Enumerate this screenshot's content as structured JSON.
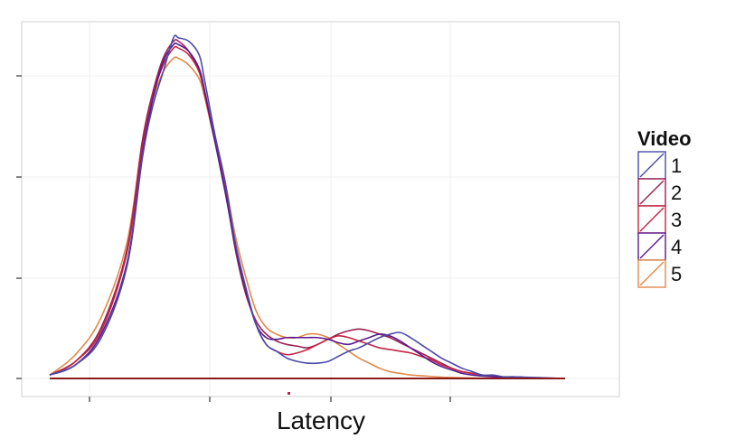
{
  "chart_data": {
    "type": "line",
    "title": "",
    "xlabel": "Latency",
    "ylabel": "",
    "grid": true,
    "legend_title": "Video",
    "legend_position": "right",
    "series": [
      {
        "name": "1",
        "color": "#4a4aa8",
        "x": [
          0.0,
          0.05,
          0.1,
          0.15,
          0.18,
          0.2,
          0.22,
          0.24,
          0.25,
          0.27,
          0.29,
          0.3,
          0.32,
          0.34,
          0.36,
          0.38,
          0.4,
          0.42,
          0.44,
          0.46,
          0.48,
          0.5,
          0.52,
          0.54,
          0.56,
          0.58,
          0.6,
          0.62,
          0.64,
          0.66,
          0.68,
          0.7,
          0.72,
          0.74,
          0.76,
          0.78,
          0.8,
          0.82,
          0.84,
          0.86,
          0.88,
          0.9,
          0.92,
          0.94,
          0.96,
          0.98,
          1.0
        ],
        "y": [
          0.01,
          0.04,
          0.12,
          0.33,
          0.65,
          0.8,
          0.9,
          1.0,
          1.0,
          0.99,
          0.95,
          0.88,
          0.72,
          0.58,
          0.4,
          0.27,
          0.16,
          0.1,
          0.08,
          0.06,
          0.05,
          0.045,
          0.045,
          0.05,
          0.065,
          0.08,
          0.09,
          0.105,
          0.12,
          0.13,
          0.135,
          0.12,
          0.1,
          0.08,
          0.06,
          0.045,
          0.03,
          0.02,
          0.01,
          0.01,
          0.005,
          0.005,
          0.004,
          0.003,
          0.002,
          0.001,
          0.0
        ]
      },
      {
        "name": "2",
        "color": "#9a1f52",
        "x": [
          0.0,
          0.05,
          0.1,
          0.15,
          0.18,
          0.2,
          0.22,
          0.24,
          0.25,
          0.27,
          0.29,
          0.3,
          0.32,
          0.34,
          0.36,
          0.38,
          0.4,
          0.42,
          0.44,
          0.46,
          0.48,
          0.5,
          0.52,
          0.54,
          0.56,
          0.58,
          0.6,
          0.62,
          0.64,
          0.66,
          0.68,
          0.7,
          0.72,
          0.74,
          0.76,
          0.78,
          0.8,
          0.82,
          0.84,
          0.86,
          0.88,
          0.9,
          0.92,
          0.94,
          0.96,
          0.98,
          1.0
        ],
        "y": [
          0.01,
          0.05,
          0.15,
          0.38,
          0.7,
          0.84,
          0.94,
          0.99,
          0.99,
          0.96,
          0.9,
          0.84,
          0.7,
          0.56,
          0.38,
          0.25,
          0.17,
          0.13,
          0.11,
          0.1,
          0.095,
          0.09,
          0.1,
          0.115,
          0.13,
          0.14,
          0.145,
          0.14,
          0.13,
          0.12,
          0.105,
          0.09,
          0.075,
          0.06,
          0.045,
          0.03,
          0.02,
          0.015,
          0.01,
          0.006,
          0.004,
          0.003,
          0.002,
          0.0015,
          0.001,
          0.0005,
          0.0
        ]
      },
      {
        "name": "3",
        "color": "#c02644",
        "x": [
          0.0,
          0.05,
          0.1,
          0.15,
          0.18,
          0.2,
          0.22,
          0.24,
          0.25,
          0.27,
          0.29,
          0.3,
          0.32,
          0.34,
          0.36,
          0.38,
          0.4,
          0.42,
          0.44,
          0.46,
          0.48,
          0.5,
          0.52,
          0.54,
          0.56,
          0.58,
          0.6,
          0.62,
          0.64,
          0.66,
          0.68,
          0.7,
          0.72,
          0.74,
          0.76,
          0.78,
          0.8,
          0.82,
          0.84,
          0.86,
          0.88,
          0.9,
          0.92,
          0.94,
          0.96,
          0.98,
          1.0
        ],
        "y": [
          0.01,
          0.05,
          0.14,
          0.37,
          0.68,
          0.83,
          0.92,
          0.97,
          0.97,
          0.95,
          0.9,
          0.84,
          0.7,
          0.57,
          0.39,
          0.26,
          0.16,
          0.1,
          0.08,
          0.07,
          0.075,
          0.085,
          0.1,
          0.115,
          0.125,
          0.12,
          0.11,
          0.1,
          0.09,
          0.085,
          0.08,
          0.075,
          0.065,
          0.055,
          0.04,
          0.03,
          0.02,
          0.015,
          0.01,
          0.006,
          0.004,
          0.003,
          0.002,
          0.0015,
          0.001,
          0.0005,
          0.0
        ]
      },
      {
        "name": "4",
        "color": "#5a1a8c",
        "x": [
          0.0,
          0.05,
          0.1,
          0.15,
          0.18,
          0.2,
          0.22,
          0.24,
          0.25,
          0.27,
          0.29,
          0.3,
          0.32,
          0.34,
          0.36,
          0.38,
          0.4,
          0.42,
          0.44,
          0.46,
          0.48,
          0.5,
          0.52,
          0.54,
          0.56,
          0.58,
          0.6,
          0.62,
          0.64,
          0.66,
          0.68,
          0.7,
          0.72,
          0.74,
          0.76,
          0.78,
          0.8,
          0.82,
          0.84,
          0.86,
          0.88,
          0.9,
          0.92,
          0.94,
          0.96,
          0.98,
          1.0
        ],
        "y": [
          0.01,
          0.04,
          0.13,
          0.34,
          0.66,
          0.82,
          0.93,
          0.98,
          0.98,
          0.96,
          0.91,
          0.85,
          0.7,
          0.55,
          0.39,
          0.26,
          0.16,
          0.12,
          0.115,
          0.12,
          0.12,
          0.12,
          0.12,
          0.115,
          0.105,
          0.1,
          0.11,
          0.12,
          0.13,
          0.125,
          0.11,
          0.09,
          0.07,
          0.05,
          0.035,
          0.025,
          0.015,
          0.01,
          0.007,
          0.005,
          0.003,
          0.002,
          0.0015,
          0.001,
          0.0007,
          0.0004,
          0.0
        ]
      },
      {
        "name": "5",
        "color": "#e08a4a",
        "x": [
          0.0,
          0.05,
          0.1,
          0.15,
          0.18,
          0.2,
          0.22,
          0.24,
          0.25,
          0.27,
          0.29,
          0.3,
          0.32,
          0.34,
          0.36,
          0.38,
          0.4,
          0.42,
          0.44,
          0.46,
          0.48,
          0.5,
          0.52,
          0.54,
          0.56,
          0.58,
          0.6,
          0.62,
          0.64,
          0.66,
          0.68,
          0.7,
          0.72,
          0.74,
          0.76,
          0.78,
          0.8,
          0.82,
          0.84,
          0.86,
          0.88,
          0.9,
          0.92,
          0.94,
          0.96,
          0.98,
          1.0
        ],
        "y": [
          0.01,
          0.07,
          0.18,
          0.4,
          0.7,
          0.82,
          0.9,
          0.94,
          0.94,
          0.92,
          0.88,
          0.83,
          0.7,
          0.58,
          0.42,
          0.3,
          0.2,
          0.15,
          0.13,
          0.12,
          0.12,
          0.13,
          0.13,
          0.12,
          0.1,
          0.08,
          0.06,
          0.045,
          0.03,
          0.02,
          0.015,
          0.01,
          0.008,
          0.006,
          0.004,
          0.003,
          0.002,
          0.0015,
          0.001,
          0.0008,
          0.0006,
          0.0005,
          0.0004,
          0.0003,
          0.0002,
          0.0001,
          0.0
        ]
      }
    ]
  }
}
